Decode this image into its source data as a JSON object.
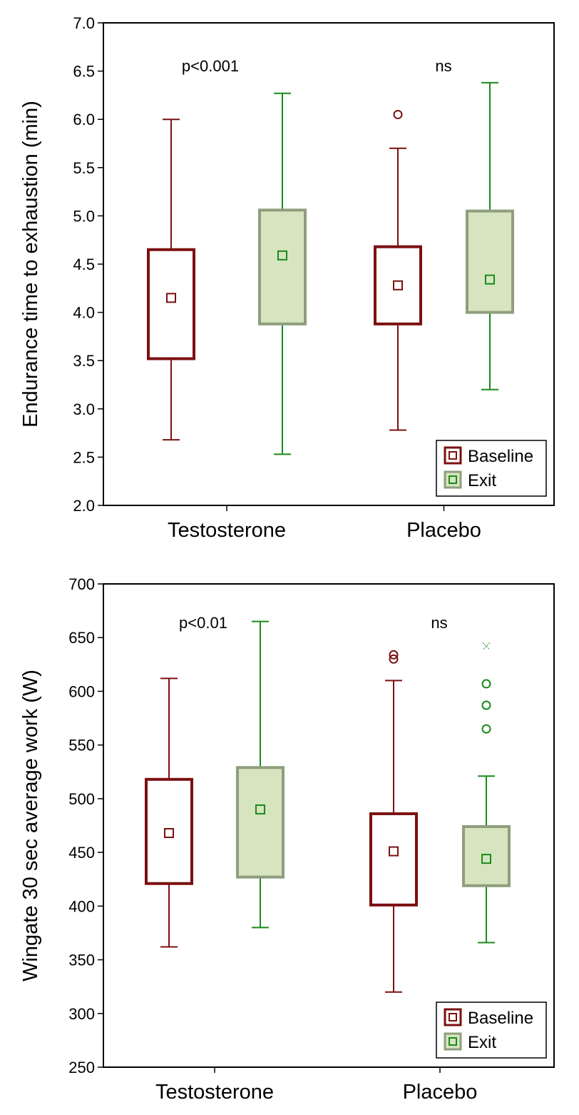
{
  "colors": {
    "baseline": "#7b1010",
    "exit_line": "#1a8a1a",
    "exit_box_fill": "#d6e5bf",
    "exit_box_edge": "#8f9e7d",
    "axis": "#000000"
  },
  "chart_data": [
    {
      "type": "box",
      "ylabel": "Endurance time to exhaustion (min)",
      "ylim": [
        2.0,
        7.0
      ],
      "yticks": [
        2.0,
        2.5,
        3.0,
        3.5,
        4.0,
        4.5,
        5.0,
        5.5,
        6.0,
        6.5,
        7.0
      ],
      "ytick_labels": [
        "2.0",
        "2.5",
        "3.0",
        "3.5",
        "4.0",
        "4.5",
        "5.0",
        "5.5",
        "6.0",
        "6.5",
        "7.0"
      ],
      "categories": [
        "Testosterone",
        "Placebo"
      ],
      "annotations": [
        "p<0.001",
        "ns"
      ],
      "legend": [
        "Baseline",
        "Exit"
      ],
      "legend_position": "bottom-right",
      "series": [
        {
          "name": "Baseline",
          "boxes": [
            {
              "min": 2.68,
              "q1": 3.52,
              "median": 4.15,
              "q3": 4.65,
              "max": 6.0,
              "outliers": []
            },
            {
              "min": 2.78,
              "q1": 3.88,
              "median": 4.28,
              "q3": 4.68,
              "max": 5.7,
              "outliers": [
                6.05
              ]
            }
          ]
        },
        {
          "name": "Exit",
          "boxes": [
            {
              "min": 2.53,
              "q1": 3.88,
              "median": 4.59,
              "q3": 5.06,
              "max": 6.27,
              "outliers": []
            },
            {
              "min": 3.2,
              "q1": 4.0,
              "median": 4.34,
              "q3": 5.05,
              "max": 6.38,
              "outliers": []
            }
          ]
        }
      ]
    },
    {
      "type": "box",
      "ylabel": "Wingate 30 sec average work (W)",
      "ylim": [
        250,
        700
      ],
      "yticks": [
        250,
        300,
        350,
        400,
        450,
        500,
        550,
        600,
        650,
        700
      ],
      "ytick_labels": [
        "250",
        "300",
        "350",
        "400",
        "450",
        "500",
        "550",
        "600",
        "650",
        "700"
      ],
      "categories": [
        "Testosterone",
        "Placebo"
      ],
      "annotations": [
        "p<0.01",
        "ns"
      ],
      "legend": [
        "Baseline",
        "Exit"
      ],
      "legend_position": "bottom-right",
      "series": [
        {
          "name": "Baseline",
          "boxes": [
            {
              "min": 362,
              "q1": 421,
              "median": 468,
              "q3": 518,
              "max": 612,
              "outliers": []
            },
            {
              "min": 320,
              "q1": 401,
              "median": 451,
              "q3": 486,
              "max": 610,
              "outliers": [
                630,
                634
              ]
            }
          ]
        },
        {
          "name": "Exit",
          "boxes": [
            {
              "min": 380,
              "q1": 427,
              "median": 490,
              "q3": 529,
              "max": 665,
              "outliers": []
            },
            {
              "min": 366,
              "q1": 419,
              "median": 444,
              "q3": 474,
              "max": 521,
              "outliers": [
                565,
                587,
                607
              ],
              "extremes": [
                642
              ]
            }
          ]
        }
      ]
    }
  ]
}
